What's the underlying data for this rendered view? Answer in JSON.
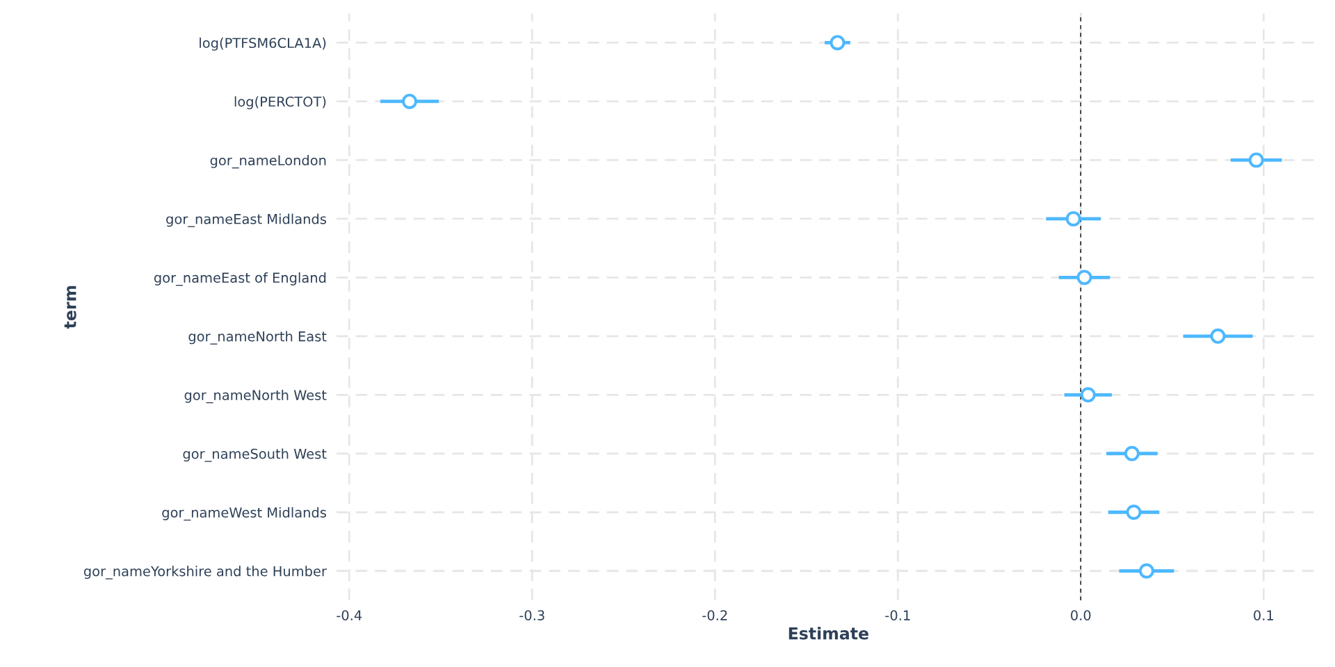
{
  "chart_data": {
    "type": "scatter",
    "orientation": "horizontal",
    "xlabel": "Estimate",
    "ylabel": "term",
    "categories": [
      "log(PTFSM6CLA1A)",
      "log(PERCTOT)",
      "gor_nameLondon",
      "gor_nameEast Midlands",
      "gor_nameEast of England",
      "gor_nameNorth East",
      "gor_nameNorth West",
      "gor_nameSouth West",
      "gor_nameWest Midlands",
      "gor_nameYorkshire and the Humber"
    ],
    "values": [
      -0.133,
      -0.367,
      0.096,
      -0.004,
      0.002,
      0.075,
      0.004,
      0.028,
      0.029,
      0.036
    ],
    "errors": [
      0.007,
      0.016,
      0.014,
      0.015,
      0.014,
      0.019,
      0.013,
      0.014,
      0.014,
      0.015
    ],
    "color": "#4db8ff",
    "marker": "circle",
    "grid": true,
    "xlim": [
      -0.407,
      0.131
    ],
    "xticks": [
      -0.4,
      -0.3,
      -0.2,
      -0.1,
      {
        "value": 0,
        "label": "0.0"
      },
      0.1
    ],
    "ref_lines": [
      {
        "axis": "x",
        "value": 0,
        "color": "#000000",
        "line_style": "dashed"
      }
    ]
  }
}
